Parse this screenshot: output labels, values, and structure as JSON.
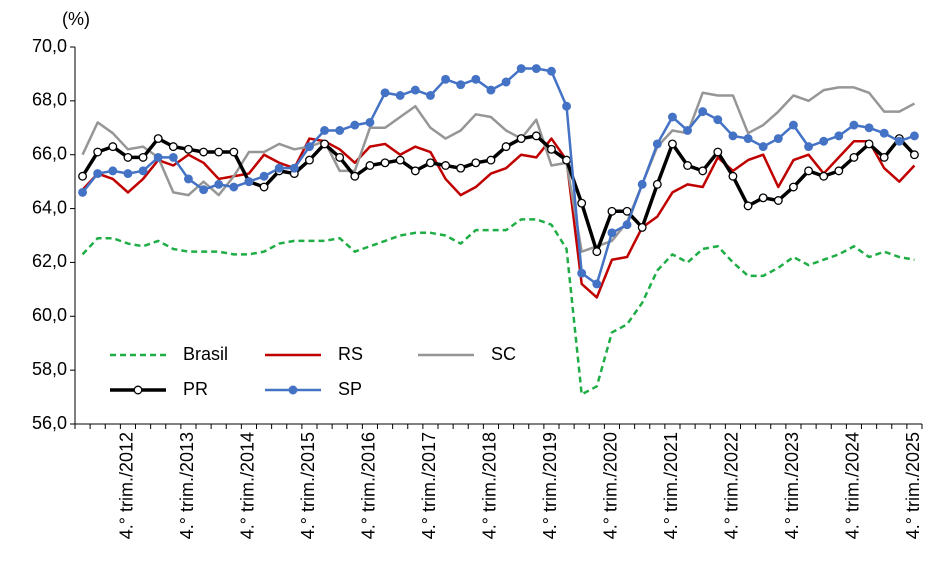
{
  "chart_data": {
    "type": "line",
    "y_label": "(%)",
    "categories": [
      null,
      null,
      null,
      "4.° trim./2012",
      null,
      null,
      null,
      "4.° trim./2013",
      null,
      null,
      null,
      "4.° trim./2014",
      null,
      null,
      null,
      "4.° trim./2015",
      null,
      null,
      null,
      "4.° trim./2016",
      null,
      null,
      null,
      "4.° trim./2017",
      null,
      null,
      null,
      "4.° trim./2018",
      null,
      null,
      null,
      "4.° trim./2019",
      null,
      null,
      null,
      "4.° trim./2020",
      null,
      null,
      null,
      "4.° trim./2021",
      null,
      null,
      null,
      "4.° trim./2022",
      null,
      null,
      null,
      "4.° trim./2023",
      null,
      null,
      null,
      "4.° trim./2024",
      null,
      null,
      null,
      "4.° trim./2025"
    ],
    "ylim": [
      56,
      70
    ],
    "yticks": [
      {
        "value": 56,
        "label": "56,0"
      },
      {
        "value": 58,
        "label": "58,0"
      },
      {
        "value": 60,
        "label": "60,0"
      },
      {
        "value": 62,
        "label": "62,0"
      },
      {
        "value": 64,
        "label": "64,0"
      },
      {
        "value": 66,
        "label": "66,0"
      },
      {
        "value": 68,
        "label": "68,0"
      },
      {
        "value": 70,
        "label": "70,0"
      }
    ],
    "grid": false,
    "legend": "lower left",
    "series": [
      {
        "name": "Brasil",
        "color": "#1fad45",
        "line_style": "dashed",
        "marker": "none",
        "values": [
          62.3,
          62.9,
          62.9,
          62.7,
          62.6,
          62.8,
          62.5,
          62.4,
          62.4,
          62.4,
          62.3,
          62.3,
          62.4,
          62.7,
          62.8,
          62.8,
          62.8,
          62.9,
          62.4,
          62.6,
          62.8,
          63.0,
          63.1,
          63.1,
          63.0,
          62.7,
          63.2,
          63.2,
          63.2,
          63.6,
          63.6,
          63.4,
          62.5,
          57.1,
          57.4,
          59.4,
          59.7,
          60.5,
          61.7,
          62.3,
          62.0,
          62.5,
          62.6,
          62.0,
          61.5,
          61.5,
          61.8,
          62.2,
          61.9,
          62.1,
          62.3,
          62.6,
          62.2,
          62.4,
          62.2,
          62.1
        ]
      },
      {
        "name": "RS",
        "color": "#c00000",
        "line_style": "solid",
        "marker": "none",
        "values": [
          64.7,
          65.3,
          65.1,
          64.6,
          65.1,
          65.8,
          65.6,
          66.0,
          65.7,
          65.1,
          65.2,
          65.3,
          66.0,
          65.7,
          65.5,
          66.6,
          66.5,
          66.2,
          65.7,
          66.3,
          66.4,
          66.0,
          66.3,
          66.1,
          65.1,
          64.5,
          64.8,
          65.3,
          65.5,
          66.0,
          65.9,
          66.6,
          65.8,
          61.2,
          60.7,
          62.1,
          62.2,
          63.3,
          63.7,
          64.6,
          64.9,
          64.8,
          65.9,
          65.4,
          65.8,
          66.0,
          64.8,
          65.8,
          66.0,
          65.3,
          65.9,
          66.5,
          66.5,
          65.5,
          65.0,
          65.6
        ]
      },
      {
        "name": "SC",
        "color": "#969696",
        "line_style": "solid",
        "marker": "none",
        "values": [
          66.0,
          67.2,
          66.8,
          66.2,
          66.3,
          65.9,
          64.6,
          64.5,
          65.0,
          64.5,
          65.2,
          66.1,
          66.1,
          66.4,
          66.2,
          66.3,
          66.5,
          65.4,
          65.4,
          67.0,
          67.0,
          67.4,
          67.8,
          67.0,
          66.6,
          66.9,
          67.5,
          67.4,
          66.9,
          66.6,
          67.3,
          65.6,
          65.7,
          62.4,
          62.6,
          62.8,
          63.5,
          64.9,
          66.3,
          66.9,
          66.8,
          68.3,
          68.2,
          68.2,
          66.8,
          67.1,
          67.6,
          68.2,
          68.0,
          68.4,
          68.5,
          68.5,
          68.3,
          67.6,
          67.6,
          67.9
        ]
      },
      {
        "name": "PR",
        "color": "#000000",
        "line_style": "solid",
        "marker": "circle-open",
        "values": [
          65.2,
          66.1,
          66.3,
          65.9,
          65.9,
          66.6,
          66.3,
          66.2,
          66.1,
          66.1,
          66.1,
          65.0,
          64.8,
          65.4,
          65.3,
          65.8,
          66.4,
          65.9,
          65.2,
          65.6,
          65.7,
          65.8,
          65.4,
          65.7,
          65.6,
          65.5,
          65.7,
          65.8,
          66.3,
          66.6,
          66.7,
          66.2,
          65.8,
          64.2,
          62.4,
          63.9,
          63.9,
          63.3,
          64.9,
          66.4,
          65.6,
          65.4,
          66.1,
          65.2,
          64.1,
          64.4,
          64.3,
          64.8,
          65.4,
          65.2,
          65.4,
          65.9,
          66.4,
          65.9,
          66.6,
          66.0
        ]
      },
      {
        "name": "SP",
        "color": "#4472c4",
        "line_style": "solid",
        "marker": "circle-filled",
        "values": [
          64.6,
          65.3,
          65.4,
          65.3,
          65.4,
          65.9,
          65.9,
          65.1,
          64.7,
          64.9,
          64.8,
          65.0,
          65.2,
          65.5,
          65.5,
          66.3,
          66.9,
          66.9,
          67.1,
          67.2,
          68.3,
          68.2,
          68.4,
          68.2,
          68.8,
          68.6,
          68.8,
          68.4,
          68.7,
          69.2,
          69.2,
          69.1,
          67.8,
          61.6,
          61.2,
          63.1,
          63.4,
          64.9,
          66.4,
          67.4,
          66.9,
          67.6,
          67.3,
          66.7,
          66.6,
          66.3,
          66.6,
          67.1,
          66.3,
          66.5,
          66.7,
          67.1,
          67.0,
          66.8,
          66.5,
          66.7
        ]
      }
    ]
  }
}
